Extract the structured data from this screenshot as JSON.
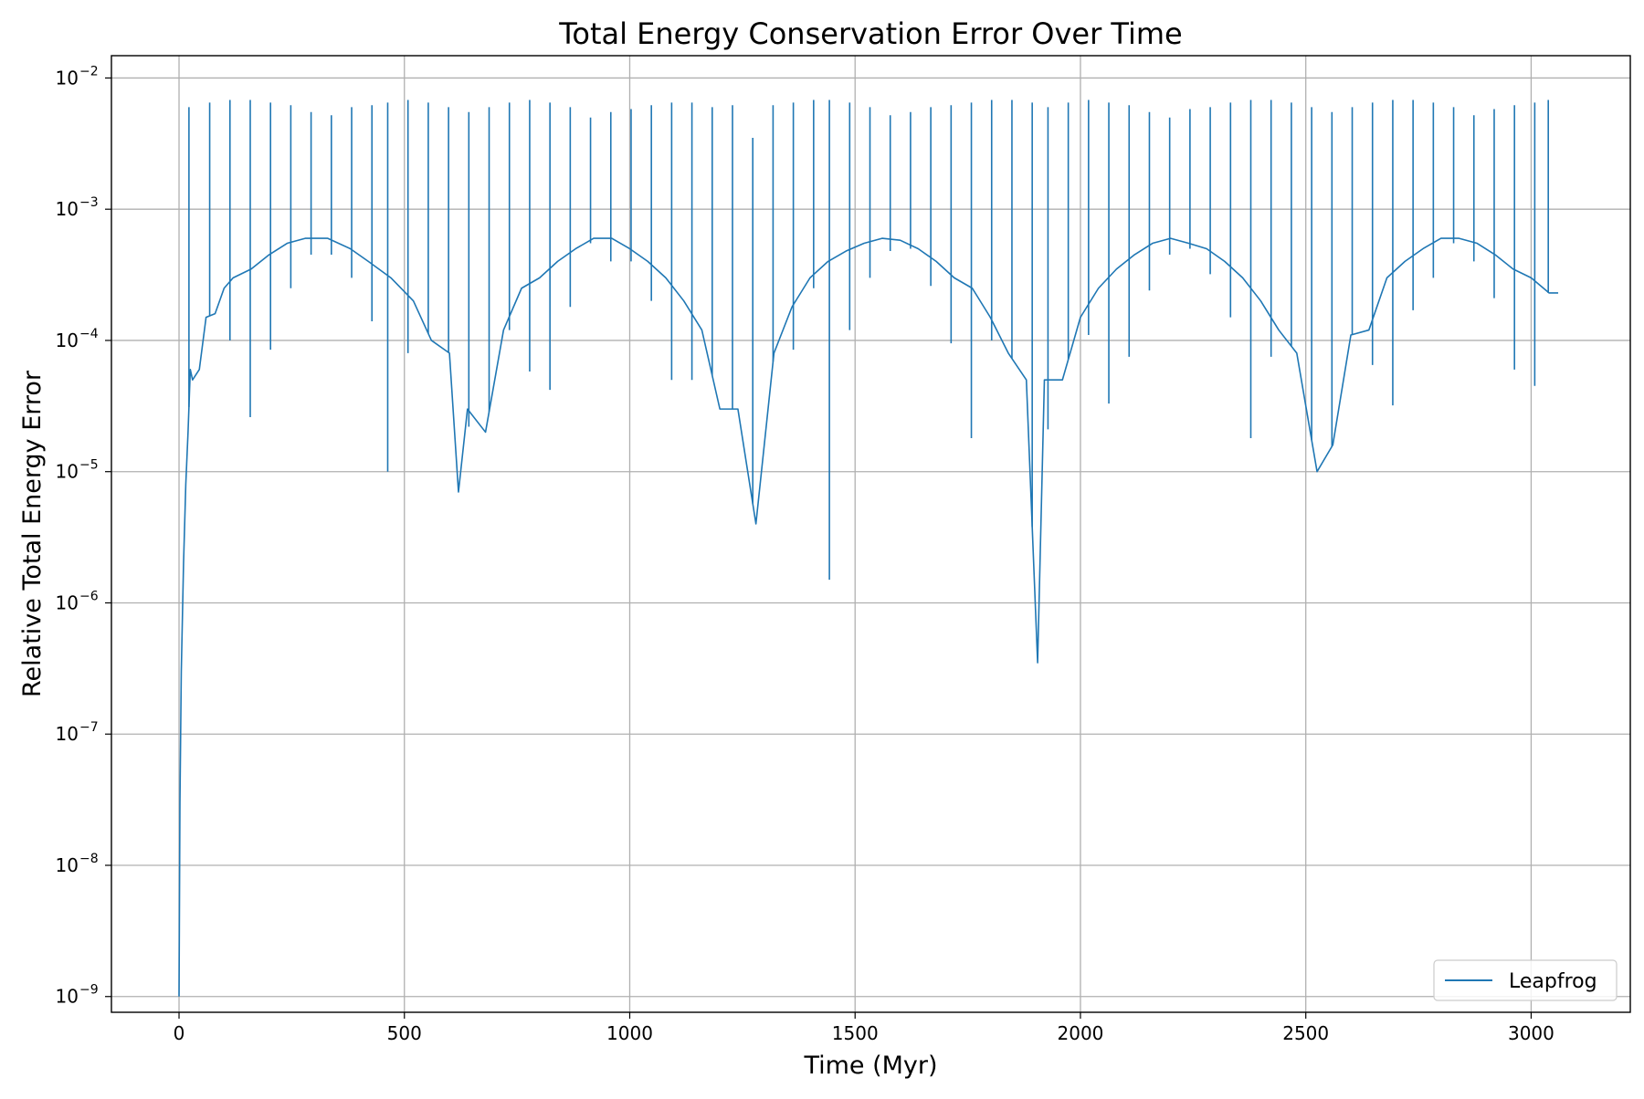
{
  "chart_data": {
    "type": "line",
    "title": "Total Energy Conservation Error Over Time",
    "xlabel": "Time (Myr)",
    "ylabel": "Relative Total Energy Error",
    "xlim": [
      -150,
      3220
    ],
    "ylim_log10": [
      -9.12,
      -1.83
    ],
    "yscale": "log",
    "grid": true,
    "legend_position": "lower right",
    "xticks": [
      0,
      500,
      1000,
      1500,
      2000,
      2500,
      3000
    ],
    "xtick_labels": [
      "0",
      "500",
      "1000",
      "1500",
      "2000",
      "2500",
      "3000"
    ],
    "yticks_log10": [
      -9,
      -8,
      -7,
      -6,
      -5,
      -4,
      -3,
      -2
    ],
    "ytick_bases": [
      "10",
      "10",
      "10",
      "10",
      "10",
      "10",
      "10",
      "10"
    ],
    "ytick_exponents": [
      "−9",
      "−8",
      "−7",
      "−6",
      "−5",
      "−4",
      "−3",
      "−2"
    ],
    "colors": {
      "series": "#1f77b4",
      "grid": "#b0b0b0",
      "axes": "#000000"
    },
    "series": [
      {
        "name": "Leapfrog",
        "x": [
          0,
          2,
          5,
          10,
          15,
          20,
          25,
          30,
          45,
          60,
          80,
          100,
          120,
          160,
          200,
          240,
          280,
          330,
          380,
          420,
          470,
          520,
          560,
          600,
          620,
          640,
          680,
          720,
          760,
          800,
          840,
          880,
          920,
          960,
          1000,
          1040,
          1080,
          1120,
          1160,
          1200,
          1240,
          1280,
          1320,
          1360,
          1400,
          1440,
          1480,
          1520,
          1560,
          1600,
          1640,
          1680,
          1720,
          1760,
          1800,
          1840,
          1880,
          1905,
          1920,
          1960,
          2000,
          2040,
          2080,
          2120,
          2160,
          2200,
          2240,
          2280,
          2320,
          2360,
          2400,
          2440,
          2480,
          2525,
          2560,
          2600,
          2640,
          2680,
          2720,
          2760,
          2800,
          2840,
          2880,
          2920,
          2960,
          3000,
          3040,
          3060
        ],
        "y": [
          1e-09,
          3e-08,
          3e-07,
          2e-06,
          8e-06,
          2e-05,
          6e-05,
          5e-05,
          6e-05,
          0.00015,
          0.00016,
          0.00025,
          0.0003,
          0.00035,
          0.00045,
          0.00055,
          0.0006,
          0.0006,
          0.0005,
          0.0004,
          0.0003,
          0.0002,
          0.0001,
          8e-05,
          7e-06,
          3e-05,
          2e-05,
          0.00012,
          0.00025,
          0.0003,
          0.0004,
          0.0005,
          0.0006,
          0.0006,
          0.0005,
          0.0004,
          0.0003,
          0.0002,
          0.00012,
          3e-05,
          3e-05,
          4e-06,
          8e-05,
          0.00018,
          0.0003,
          0.0004,
          0.00048,
          0.00055,
          0.0006,
          0.00058,
          0.0005,
          0.0004,
          0.0003,
          0.00025,
          0.00015,
          8e-05,
          5e-05,
          3.5e-07,
          5e-05,
          5e-05,
          0.00015,
          0.00025,
          0.00035,
          0.00045,
          0.00055,
          0.0006,
          0.00055,
          0.0005,
          0.0004,
          0.0003,
          0.0002,
          0.00012,
          8e-05,
          1e-05,
          1.6e-05,
          0.00011,
          0.00012,
          0.0003,
          0.0004,
          0.0005,
          0.0006,
          0.0006,
          0.00055,
          0.00045,
          0.00035,
          0.0003,
          0.00023,
          0.00023
        ]
      }
    ],
    "spike_times": [
      22,
      68,
      113,
      158,
      203,
      248,
      293,
      338,
      383,
      428,
      463,
      508,
      553,
      598,
      643,
      688,
      733,
      778,
      823,
      868,
      913,
      958,
      1003,
      1048,
      1093,
      1138,
      1183,
      1228,
      1273,
      1318,
      1363,
      1408,
      1443,
      1488,
      1533,
      1578,
      1623,
      1668,
      1713,
      1758,
      1803,
      1848,
      1893,
      1928,
      1973,
      2018,
      2063,
      2108,
      2153,
      2198,
      2243,
      2288,
      2333,
      2378,
      2423,
      2468,
      2513,
      2558,
      2603,
      2648,
      2693,
      2738,
      2783,
      2828,
      2873,
      2918,
      2963,
      3008,
      3038
    ],
    "spike_peaks": [
      0.006,
      0.0065,
      0.0068,
      0.0068,
      0.0065,
      0.0062,
      0.0055,
      0.0052,
      0.006,
      0.0062,
      0.0065,
      0.0068,
      0.0065,
      0.006,
      0.0055,
      0.006,
      0.0065,
      0.0068,
      0.0065,
      0.006,
      0.005,
      0.0055,
      0.0058,
      0.0062,
      0.0065,
      0.0065,
      0.006,
      0.0062,
      0.0035,
      0.0062,
      0.0065,
      0.0068,
      0.0068,
      0.0065,
      0.006,
      0.0052,
      0.0055,
      0.006,
      0.0062,
      0.0065,
      0.0068,
      0.0068,
      0.0065,
      0.006,
      0.0065,
      0.0068,
      0.0065,
      0.0062,
      0.0055,
      0.005,
      0.0058,
      0.006,
      0.0065,
      0.0068,
      0.0068,
      0.0065,
      0.006,
      0.0055,
      0.006,
      0.0065,
      0.0068,
      0.0068,
      0.0065,
      0.006,
      0.0052,
      0.0058,
      0.0062,
      0.0065,
      0.0068
    ],
    "spike_dips": [
      3.5e-05,
      0.0003,
      0.0001,
      2.6e-05,
      8.5e-05,
      0.00025,
      0.00045,
      0.00045,
      0.0003,
      0.00014,
      1e-05,
      8e-05,
      0.00013,
      9e-05,
      2.2e-05,
      0.00013,
      0.00012,
      5.8e-05,
      4.2e-05,
      0.00018,
      0.00055,
      0.0004,
      0.0004,
      0.0002,
      5e-05,
      5e-05,
      0.00015,
      0.00015,
      9.5e-06,
      0.00012,
      8.5e-05,
      0.00025,
      1.5e-06,
      0.00012,
      0.0003,
      0.00048,
      0.0005,
      0.00026,
      9.5e-05,
      1.8e-05,
      0.0001,
      0.00014,
      4.5e-05,
      2.1e-05,
      0.00011,
      0.00011,
      3.3e-05,
      7.5e-05,
      0.00024,
      0.00045,
      0.0005,
      0.00032,
      0.00015,
      1.8e-05,
      7.5e-05,
      9e-05,
      3.5e-05,
      3.2e-05,
      0.00025,
      6.5e-05,
      3.2e-05,
      0.00017,
      0.0003,
      0.00055,
      0.0004,
      0.00021,
      6e-05,
      4.5e-05,
      0.00023
    ]
  }
}
